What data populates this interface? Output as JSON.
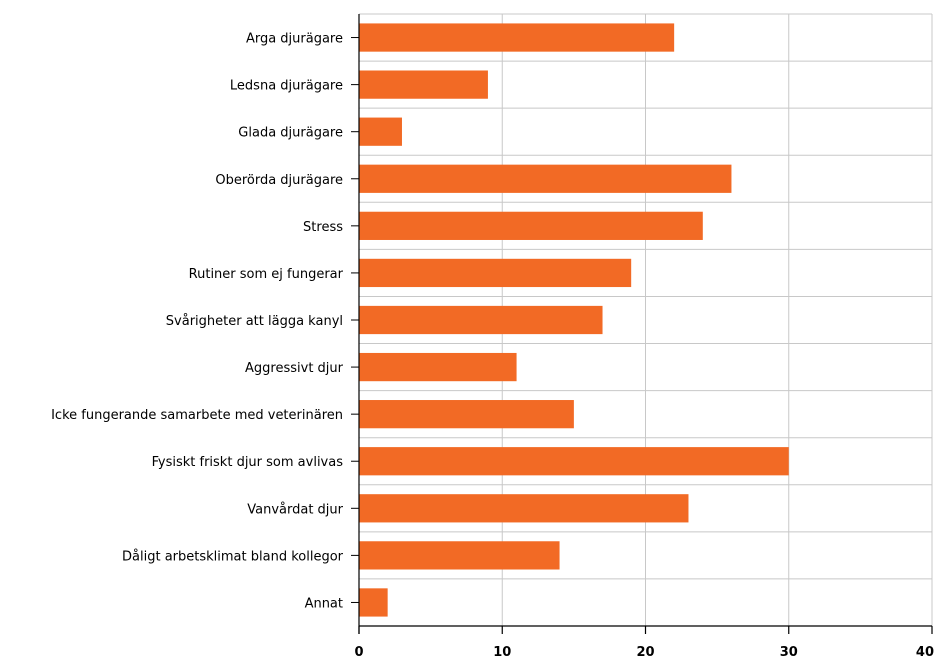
{
  "chart_data": {
    "type": "bar",
    "orientation": "horizontal",
    "title": "",
    "xlabel": "",
    "ylabel": "",
    "categories": [
      "Arga djurägare",
      "Ledsna djurägare",
      "Glada djurägare",
      "Oberörda djurägare",
      "Stress",
      "Rutiner som ej fungerar",
      "Svårigheter att lägga kanyl",
      "Aggressivt djur",
      "Icke fungerande samarbete med veterinären",
      "Fysiskt friskt djur som avlivas",
      "Vanvårdat djur",
      "Dåligt arbetsklimat bland kollegor",
      "Annat"
    ],
    "values": [
      22,
      9,
      3,
      26,
      24,
      19,
      17,
      11,
      15,
      30,
      23,
      14,
      2
    ],
    "xlim": [
      0,
      40
    ],
    "xticks": [
      0,
      10,
      20,
      30,
      40
    ],
    "grid": true,
    "bar_color": "#f26a25",
    "grid_color": "#c8c8c8"
  }
}
